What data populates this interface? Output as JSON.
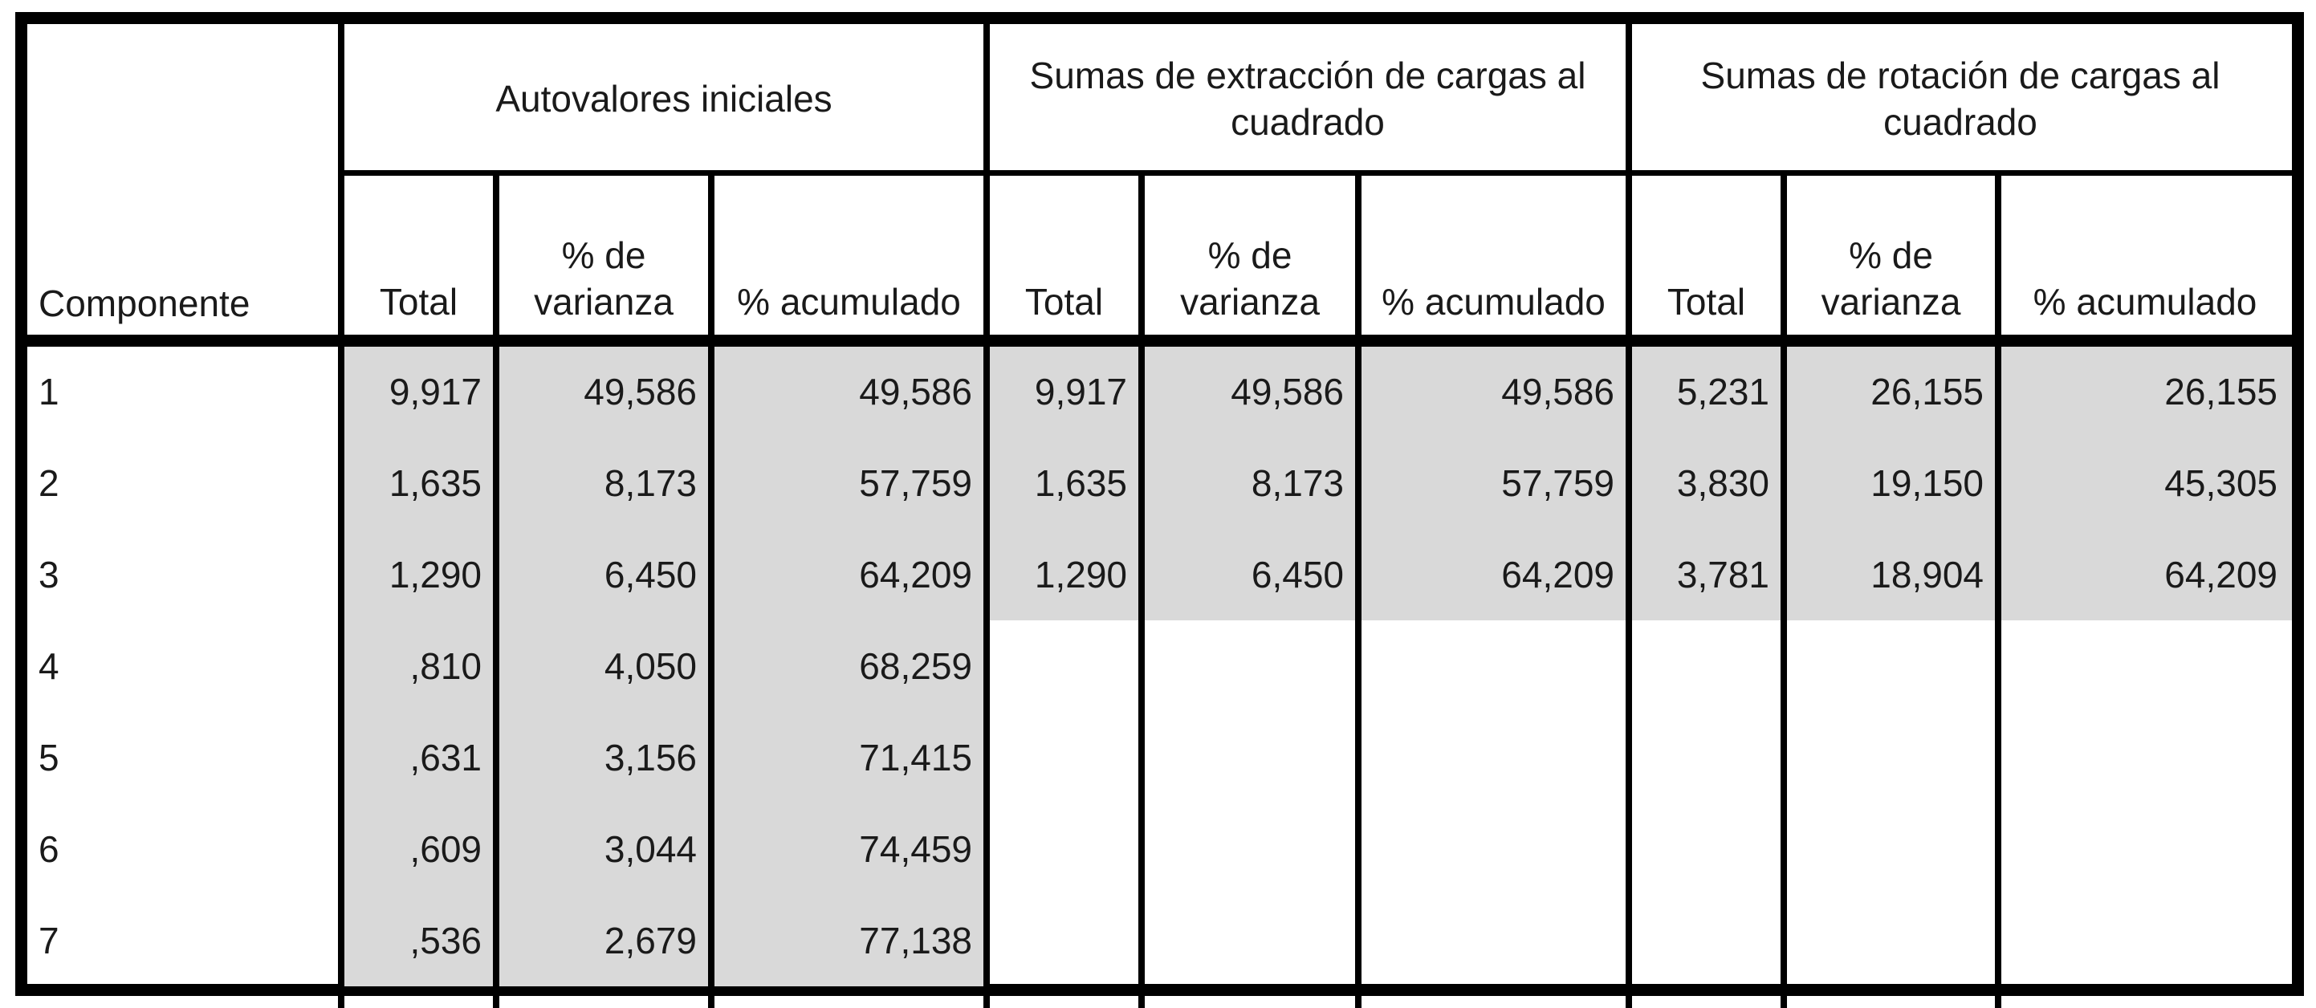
{
  "table": {
    "row_header_label": "Componente",
    "groups": [
      {
        "label": "Autovalores iniciales"
      },
      {
        "label": "Sumas de extracción de cargas al cuadrado"
      },
      {
        "label": "Sumas de rotación de cargas al cuadrado"
      }
    ],
    "columns": [
      "Total",
      "% de varianza",
      "% acumulado",
      "Total",
      "% de varianza",
      "% acumulado",
      "Total",
      "% de varianza",
      "% acumulado"
    ],
    "rows": [
      {
        "component": "1",
        "values": [
          "9,917",
          "49,586",
          "49,586",
          "9,917",
          "49,586",
          "49,586",
          "5,231",
          "26,155",
          "26,155"
        ]
      },
      {
        "component": "2",
        "values": [
          "1,635",
          "8,173",
          "57,759",
          "1,635",
          "8,173",
          "57,759",
          "3,830",
          "19,150",
          "45,305"
        ]
      },
      {
        "component": "3",
        "values": [
          "1,290",
          "6,450",
          "64,209",
          "1,290",
          "6,450",
          "64,209",
          "3,781",
          "18,904",
          "64,209"
        ]
      },
      {
        "component": "4",
        "values": [
          ",810",
          "4,050",
          "68,259",
          "",
          "",
          "",
          "",
          "",
          ""
        ]
      },
      {
        "component": "5",
        "values": [
          ",631",
          "3,156",
          "71,415",
          "",
          "",
          "",
          "",
          "",
          ""
        ]
      },
      {
        "component": "6",
        "values": [
          ",609",
          "3,044",
          "74,459",
          "",
          "",
          "",
          "",
          "",
          ""
        ]
      },
      {
        "component": "7",
        "values": [
          ",536",
          "2,679",
          "77,138",
          "",
          "",
          "",
          "",
          "",
          ""
        ]
      }
    ]
  },
  "colors": {
    "shade": "#d9d9d9",
    "border": "#000000"
  }
}
